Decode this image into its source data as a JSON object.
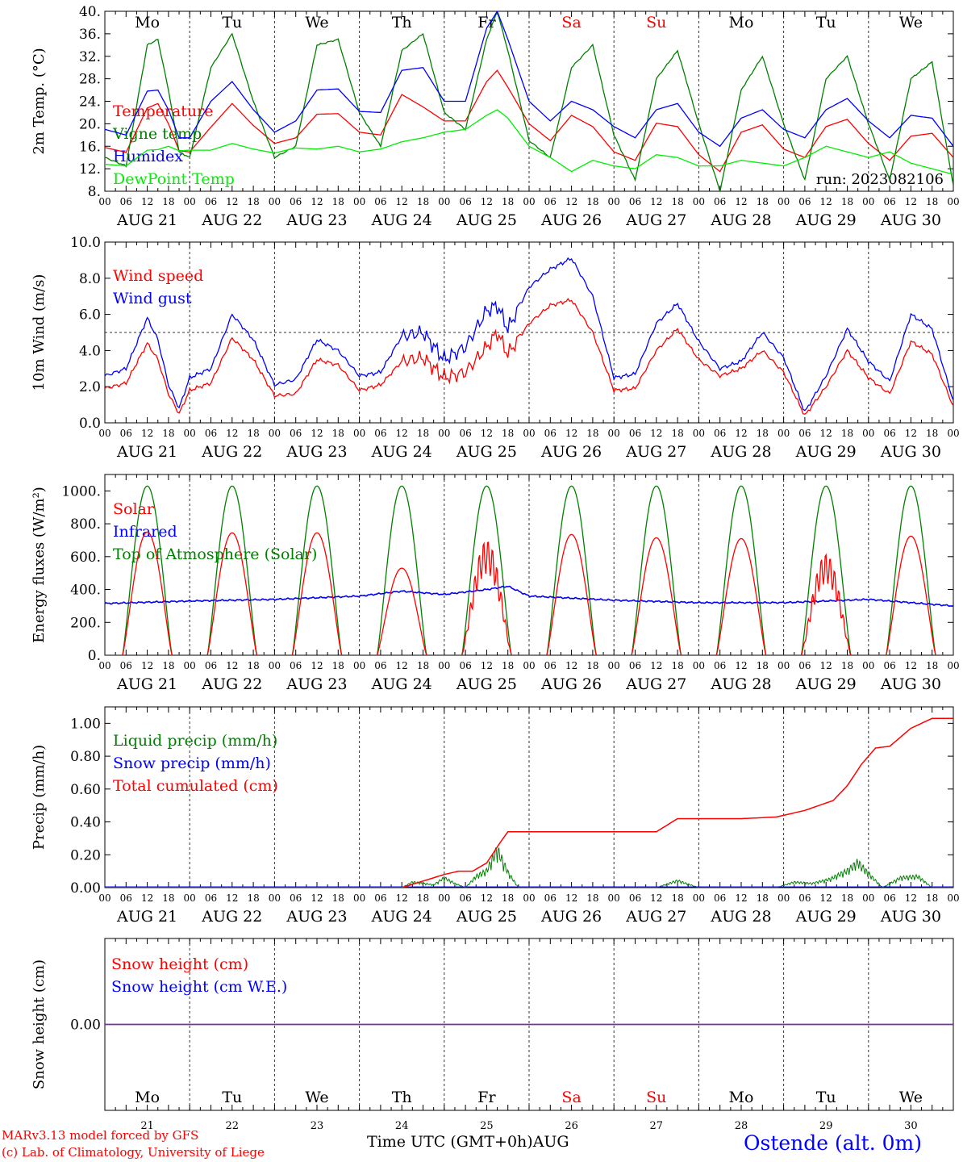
{
  "colors": {
    "red": "#ff0000",
    "green": "#008000",
    "blue": "#0000ff",
    "lime": "#00ee00",
    "purple": "#7f2aa0",
    "axis": "#000000"
  },
  "days": {
    "abbr": [
      "Mo",
      "Tu",
      "We",
      "Th",
      "Fr",
      "Sa",
      "Su",
      "Mo",
      "Tu",
      "We"
    ],
    "abbr_colors": [
      "#000000",
      "#000000",
      "#000000",
      "#000000",
      "#000000",
      "#ff0000",
      "#ff0000",
      "#000000",
      "#000000",
      "#000000"
    ],
    "dates": [
      "AUG 21",
      "AUG 22",
      "AUG 23",
      "AUG 24",
      "AUG 25",
      "AUG 26",
      "AUG 27",
      "AUG 28",
      "AUG 29",
      "AUG 30"
    ],
    "numbers": [
      "21",
      "22",
      "23",
      "24",
      "25",
      "26",
      "27",
      "28",
      "29",
      "30"
    ],
    "hour_ticks": [
      "00",
      "06",
      "12",
      "18"
    ],
    "final_tick": "00"
  },
  "footer": {
    "credit_line1": "MARv3.13 model forced by GFS",
    "credit_line2": "(c) Lab. of Climatology, University of Liege",
    "x_title": "Time UTC (GMT+0h)",
    "month": "AUG",
    "station": "Ostende (alt. 0m)"
  },
  "chart_data": [
    {
      "type": "line",
      "ylabel": "2m Temp. (°C)",
      "ylim": [
        8,
        40
      ],
      "yticks": [
        "8.",
        "12.",
        "16.",
        "20.",
        "24.",
        "28.",
        "32.",
        "36.",
        "40."
      ],
      "annotation": "run: 2023082106",
      "x_hours": [
        0,
        6,
        12,
        15,
        18,
        21,
        24,
        30,
        36,
        42,
        48,
        54,
        60,
        66,
        72,
        78,
        84,
        90,
        96,
        102,
        108,
        111,
        114,
        120,
        126,
        132,
        138,
        144,
        150,
        156,
        162,
        168,
        174,
        180,
        186,
        192,
        198,
        204,
        210,
        216,
        222,
        228,
        234,
        240
      ],
      "series": [
        {
          "name": "Temperature",
          "color": "#ff0000",
          "values": [
            15.8,
            14.9,
            22.8,
            23.6,
            20,
            15.2,
            15,
            19.4,
            23.6,
            19.7,
            16.5,
            17.5,
            21.7,
            21.8,
            18.5,
            18,
            25.2,
            23,
            20.5,
            20.5,
            27.5,
            29.5,
            26.5,
            20,
            17,
            21.5,
            19.5,
            15,
            13.5,
            20.1,
            19.5,
            14.5,
            11.5,
            18.5,
            19.8,
            15.5,
            14,
            19.5,
            20.8,
            16.5,
            13.5,
            17.8,
            18.3,
            14
          ]
        },
        {
          "name": "Vigne temp",
          "color": "#008000",
          "values": [
            14,
            12.5,
            34,
            35,
            26,
            15,
            14,
            30,
            36,
            24,
            14,
            16,
            34,
            35,
            22,
            16,
            33,
            36,
            22,
            19,
            35,
            40,
            33,
            17,
            14,
            30,
            34,
            18,
            10,
            28,
            33,
            20,
            8,
            26,
            32,
            20,
            10,
            28,
            32,
            20,
            10,
            28,
            31,
            9
          ]
        },
        {
          "name": "Humidex",
          "color": "#0000ff",
          "values": [
            19,
            18,
            25.8,
            26,
            22.5,
            17.5,
            17.5,
            24,
            27.5,
            22.5,
            18.5,
            20.5,
            26,
            26.2,
            22.2,
            22,
            29.5,
            30,
            24,
            24,
            37,
            40,
            35,
            24,
            20.5,
            24,
            22.5,
            19.5,
            17.5,
            22.5,
            23.6,
            18.5,
            16,
            21,
            22.5,
            19,
            17.5,
            22.5,
            24.5,
            20.5,
            17.5,
            21.5,
            21,
            16
          ]
        },
        {
          "name": "DewPoint Temp",
          "color": "#00ee00",
          "values": [
            12.8,
            12.5,
            15.3,
            15.4,
            16,
            15.2,
            15.3,
            15.3,
            16.5,
            15.5,
            14.8,
            15.7,
            15.5,
            16,
            15,
            15.5,
            16.8,
            17.5,
            18.5,
            19,
            21.5,
            22.5,
            21,
            16,
            14,
            11.5,
            13.5,
            12.5,
            12,
            14.5,
            14,
            12.5,
            12.5,
            13.5,
            13,
            12.5,
            14,
            16,
            15,
            14,
            15,
            13,
            12,
            11
          ]
        }
      ]
    },
    {
      "type": "line",
      "ylabel": "10m Wind (m/s)",
      "ylim": [
        0,
        10
      ],
      "yticks": [
        "0.0",
        "2.0",
        "4.0",
        "6.0",
        "8.0",
        "10.0"
      ],
      "reference_line": 5,
      "x_hours": [
        0,
        6,
        12,
        15,
        18,
        21,
        24,
        30,
        36,
        42,
        48,
        54,
        60,
        66,
        72,
        78,
        84,
        90,
        96,
        102,
        108,
        111,
        114,
        120,
        126,
        132,
        138,
        144,
        150,
        156,
        162,
        168,
        174,
        180,
        186,
        192,
        198,
        204,
        210,
        216,
        222,
        228,
        234,
        240
      ],
      "series": [
        {
          "name": "Wind speed",
          "color": "#ff0000",
          "values": [
            1.9,
            2.2,
            4.4,
            3.5,
            1.6,
            0.5,
            1.8,
            2.2,
            4.7,
            3.5,
            1.5,
            1.6,
            3.5,
            3.2,
            1.8,
            2.1,
            3.4,
            3.6,
            2.5,
            2.8,
            4.2,
            5.0,
            3.8,
            5.5,
            6.5,
            6.8,
            5.0,
            1.8,
            1.9,
            4.0,
            5.2,
            3.5,
            2.6,
            3.0,
            4.0,
            2.8,
            0.4,
            2.0,
            4.0,
            2.5,
            1.6,
            4.5,
            3.8,
            0.9
          ]
        },
        {
          "name": "Wind gust",
          "color": "#0000ff",
          "values": [
            2.6,
            3.0,
            5.8,
            4.6,
            2.1,
            0.8,
            2.5,
            3.0,
            6.0,
            4.6,
            2.1,
            2.4,
            4.6,
            4.0,
            2.6,
            2.8,
            4.8,
            5.0,
            3.5,
            4.2,
            6.2,
            6.5,
            5.2,
            7.5,
            8.5,
            9.1,
            7.0,
            2.5,
            2.7,
            5.5,
            6.6,
            4.5,
            3.0,
            3.4,
            5.0,
            3.6,
            0.6,
            2.6,
            5.2,
            3.4,
            2.3,
            6.0,
            5.2,
            1.2
          ]
        }
      ]
    },
    {
      "type": "line",
      "ylabel": "Energy fluxes (W/m²)",
      "ylim": [
        0,
        1100
      ],
      "yticks": [
        "0.",
        "200.",
        "400.",
        "600.",
        "800.",
        "1000."
      ],
      "solar_peaks": [
        750,
        745,
        745,
        530,
        710,
        735,
        715,
        710,
        625,
        725
      ],
      "toa_peak": 1030,
      "infrared": {
        "x_hours": [
          0,
          24,
          48,
          72,
          84,
          96,
          108,
          114,
          120,
          144,
          168,
          192,
          216,
          240
        ],
        "values": [
          315,
          330,
          340,
          360,
          390,
          370,
          400,
          420,
          360,
          335,
          320,
          320,
          340,
          300
        ]
      },
      "series": [
        {
          "name": "Solar",
          "color": "#ff0000"
        },
        {
          "name": "Infrared",
          "color": "#0000ff"
        },
        {
          "name": "Top of Atmosphere (Solar)",
          "color": "#008000"
        }
      ]
    },
    {
      "type": "line",
      "ylabel": "Precip (mm/h)",
      "ylim": [
        0,
        1.1
      ],
      "yticks": [
        "0.00",
        "0.20",
        "0.40",
        "0.60",
        "0.80",
        "1.00"
      ],
      "cumulated": {
        "x_hours": [
          0,
          84,
          96,
          100,
          104,
          108,
          112,
          114,
          120,
          144,
          156,
          162,
          168,
          180,
          190,
          198,
          206,
          210,
          214,
          218,
          222,
          228,
          234,
          240
        ],
        "values": [
          0,
          0,
          0.08,
          0.1,
          0.1,
          0.15,
          0.28,
          0.34,
          0.34,
          0.34,
          0.34,
          0.42,
          0.42,
          0.42,
          0.43,
          0.47,
          0.53,
          0.62,
          0.75,
          0.85,
          0.86,
          0.97,
          1.03,
          1.03
        ]
      },
      "liquid": {
        "x_hours": [
          84,
          87,
          90,
          93,
          96,
          99,
          102,
          105,
          108,
          111,
          114,
          117,
          120,
          156,
          162,
          168,
          190,
          195,
          200,
          205,
          210,
          213,
          216,
          220,
          225,
          230,
          234
        ],
        "values": [
          0,
          0.04,
          0.03,
          0.02,
          0.07,
          0.03,
          0,
          0.08,
          0.12,
          0.27,
          0.11,
          0,
          0,
          0,
          0.05,
          0,
          0,
          0.04,
          0.03,
          0.06,
          0.12,
          0.18,
          0.1,
          0,
          0.07,
          0.08,
          0
        ]
      },
      "series": [
        {
          "name": "Liquid precip (mm/h)",
          "color": "#008000"
        },
        {
          "name": "Snow precip (mm/h)",
          "color": "#0000ff"
        },
        {
          "name": "Total cumulated (cm)",
          "color": "#ff0000"
        }
      ]
    },
    {
      "type": "line",
      "ylabel": "Snow height (cm)",
      "yticks": [
        "0.00"
      ],
      "series": [
        {
          "name": "Snow height (cm)",
          "color": "#ff0000",
          "values": [
            0,
            0
          ]
        },
        {
          "name": "Snow height (cm W.E.)",
          "color": "#0000ff",
          "values": [
            0,
            0
          ]
        }
      ]
    }
  ]
}
